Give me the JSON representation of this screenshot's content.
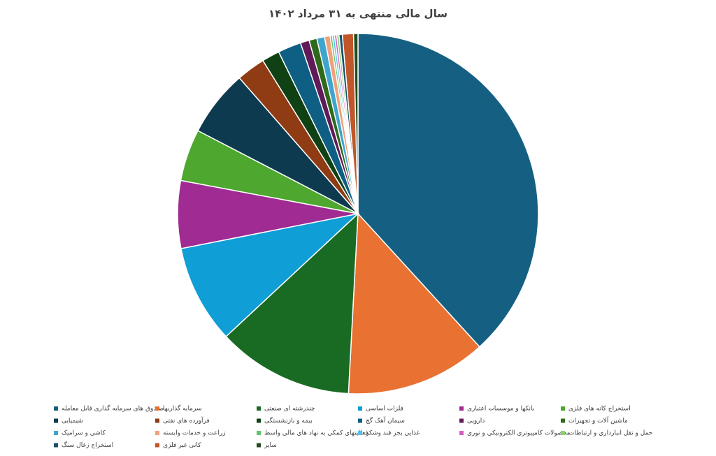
{
  "chart_data": {
    "type": "pie",
    "title": "سال مالی منتهی به ۳۱ مرداد ۱۴۰۲",
    "categories": [
      "صندوق های سرمایه گذاری قابل معامله",
      "سرمایه گذاریها",
      "چندرشته ای صنعتی",
      "فلزات اساسی",
      "بانکها و موسسات اعتباری",
      "استخراج کانه های فلزی",
      "شیمیایی",
      "فرآورده های نفتی",
      "بیمه و بازنشستگی",
      "سیمان آهک گچ",
      "دارویی",
      "ماشین آلات و تجهیزات",
      "کاشی و سرامیک",
      "زراعت و خدمات وابسته",
      "فعالیتهای کمکی به نهاد های مالی واسط",
      "غذایی بجز قند وشکر",
      "محصولات کامپیوتری الکترونیکی و نوری",
      "حمل و نقل انبارداری و ارتباطات",
      "استخراج زغال سنگ",
      "کانی غیر فلزی",
      "سایر"
    ],
    "values": [
      38.5,
      12.7,
      12.3,
      8.9,
      6.1,
      4.7,
      6.0,
      2.6,
      1.6,
      2.1,
      0.8,
      0.7,
      0.7,
      0.5,
      0.2,
      0.2,
      0.2,
      0.2,
      0.3,
      1.0,
      0.4
    ],
    "colors": [
      "#156082",
      "#e97132",
      "#196b24",
      "#0f9ed5",
      "#a02b93",
      "#4ea72e",
      "#0d3a4f",
      "#8f3b13",
      "#0f4115",
      "#0e5f83",
      "#601a58",
      "#2e6a1c",
      "#3fa5cf",
      "#f0a17a",
      "#5fc46e",
      "#4fc1ee",
      "#d65fc7",
      "#8ad36c",
      "#1c4f6b",
      "#c0562a",
      "#234d1e"
    ],
    "legend": "bottom"
  }
}
